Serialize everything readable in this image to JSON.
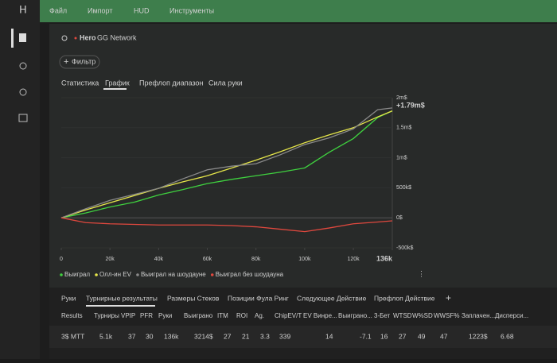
{
  "menu": [
    "Файл",
    "Импорт",
    "HUD",
    "Инструменты"
  ],
  "header": {
    "player": "Hero",
    "network": "GG Network"
  },
  "filter": "Фильтр",
  "tabs": [
    "Статистика",
    "График",
    "Префлоп диапазон",
    "Сила руки"
  ],
  "chart_data": {
    "type": "line",
    "end_label": "+1.79m$",
    "x": [
      0,
      10000,
      20000,
      30000,
      40000,
      50000,
      60000,
      70000,
      80000,
      90000,
      100000,
      110000,
      120000,
      130000,
      136000
    ],
    "xlim": [
      0,
      136000
    ],
    "xticks": [
      0,
      {
        "value": 20000,
        "label": "20k"
      },
      {
        "value": 40000,
        "label": "40k"
      },
      {
        "value": 60000,
        "label": "60k"
      },
      {
        "value": 80000,
        "label": "80k"
      },
      {
        "value": 100000,
        "label": "100k"
      },
      {
        "value": 120000,
        "label": "120k"
      },
      {
        "value": 136000,
        "label": "136k"
      }
    ],
    "ylim": [
      -500000,
      2000000
    ],
    "yticks": [
      {
        "value": -500000,
        "label": "-500k$"
      },
      {
        "value": 0,
        "label": "0$"
      },
      {
        "value": 500000,
        "label": "500k$"
      },
      {
        "value": 1000000,
        "label": "1m$"
      },
      {
        "value": 1500000,
        "label": "1.5m$"
      },
      {
        "value": 2000000,
        "label": "2m$"
      }
    ],
    "series": [
      {
        "name": "Выиграл",
        "color": "#3fd13f",
        "values": [
          0,
          80000,
          180000,
          260000,
          380000,
          470000,
          570000,
          640000,
          700000,
          760000,
          830000,
          1090000,
          1320000,
          1670000,
          1780000
        ]
      },
      {
        "name": "Олл-ин EV",
        "color": "#e6e64a",
        "values": [
          0,
          130000,
          250000,
          370000,
          490000,
          600000,
          700000,
          830000,
          960000,
          1100000,
          1250000,
          1380000,
          1500000,
          1680000,
          1780000
        ]
      },
      {
        "name": "Выиграл на шоудауне",
        "color": "#8a8a8a",
        "values": [
          0,
          150000,
          290000,
          390000,
          490000,
          650000,
          800000,
          860000,
          900000,
          1050000,
          1220000,
          1330000,
          1480000,
          1800000,
          1830000
        ]
      },
      {
        "name": "Выиграл без шоудауна",
        "color": "#e0483e",
        "values": [
          0,
          -80000,
          -100000,
          -110000,
          -120000,
          -120000,
          -120000,
          -130000,
          -150000,
          -190000,
          -230000,
          -170000,
          -100000,
          -70000,
          -50000
        ]
      }
    ]
  },
  "bottom_tabs": [
    "Руки",
    "Турнирные результаты",
    "Размеры Стеков",
    "Позиции Фула Ринг",
    "Следующее Действие",
    "Префлоп Действие"
  ],
  "table": {
    "columns": [
      "Results",
      "Турниры",
      "VPIP",
      "PFR",
      "Руки",
      "Выиграно",
      "ITM",
      "ROI",
      "Ag.",
      "ChipEV/T",
      "EV Винре...",
      "Выиграно...",
      "3-Бет",
      "WTSD",
      "W%SD",
      "WWSF%",
      "Заплачен...",
      "Дисперси..."
    ],
    "rows": [
      [
        "3$ MTT",
        "5.1k",
        "37",
        "30",
        "136k",
        "3214$",
        "27",
        "21",
        "3.3",
        "339",
        "14",
        "-7.1",
        "16",
        "27",
        "49",
        "47",
        "1223$",
        "6.68"
      ]
    ]
  }
}
